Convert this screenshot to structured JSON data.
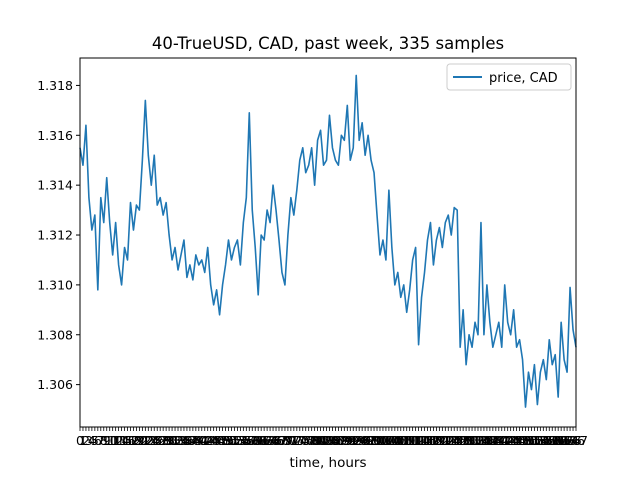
{
  "chart_data": {
    "type": "line",
    "title": "40-TrueUSD, CAD, past week, 335 samples",
    "xlabel": "time, hours",
    "ylabel": "",
    "xlim": [
      0,
      167
    ],
    "ylim": [
      1.3043,
      1.3191
    ],
    "yticks": [
      1.306,
      1.308,
      1.31,
      1.312,
      1.314,
      1.316,
      1.318
    ],
    "ytick_labels": [
      "1.306",
      "1.308",
      "1.310",
      "1.312",
      "1.314",
      "1.316",
      "1.318"
    ],
    "xticks_note": "hourly ticks 0–167 (labels overlap)",
    "legend_position": "top-right",
    "grid": false,
    "series": [
      {
        "name": "price, CAD",
        "color": "#1f77b4",
        "anchors": [
          [
            0,
            1.3155
          ],
          [
            1,
            1.3148
          ],
          [
            2,
            1.3164
          ],
          [
            3,
            1.3135
          ],
          [
            4,
            1.3122
          ],
          [
            5,
            1.3128
          ],
          [
            6,
            1.3098
          ],
          [
            7,
            1.3135
          ],
          [
            8,
            1.3125
          ],
          [
            9,
            1.3143
          ],
          [
            10,
            1.3125
          ],
          [
            11,
            1.3112
          ],
          [
            12,
            1.3125
          ],
          [
            13,
            1.3108
          ],
          [
            14,
            1.31
          ],
          [
            15,
            1.3115
          ],
          [
            16,
            1.311
          ],
          [
            17,
            1.3133
          ],
          [
            18,
            1.3122
          ],
          [
            19,
            1.3132
          ],
          [
            20,
            1.313
          ],
          [
            21,
            1.315
          ],
          [
            22,
            1.3174
          ],
          [
            23,
            1.3152
          ],
          [
            24,
            1.314
          ],
          [
            25,
            1.3152
          ],
          [
            26,
            1.3132
          ],
          [
            27,
            1.3135
          ],
          [
            28,
            1.3128
          ],
          [
            29,
            1.3133
          ],
          [
            30,
            1.312
          ],
          [
            31,
            1.311
          ],
          [
            32,
            1.3115
          ],
          [
            33,
            1.3106
          ],
          [
            34,
            1.3112
          ],
          [
            35,
            1.3118
          ],
          [
            36,
            1.3103
          ],
          [
            37,
            1.3108
          ],
          [
            38,
            1.3102
          ],
          [
            39,
            1.3112
          ],
          [
            40,
            1.3108
          ],
          [
            41,
            1.311
          ],
          [
            42,
            1.3105
          ],
          [
            43,
            1.3115
          ],
          [
            44,
            1.31
          ],
          [
            45,
            1.3092
          ],
          [
            46,
            1.3098
          ],
          [
            47,
            1.3088
          ],
          [
            48,
            1.31
          ],
          [
            49,
            1.3108
          ],
          [
            50,
            1.3118
          ],
          [
            51,
            1.311
          ],
          [
            52,
            1.3115
          ],
          [
            53,
            1.3118
          ],
          [
            54,
            1.3108
          ],
          [
            55,
            1.3125
          ],
          [
            56,
            1.3135
          ],
          [
            57,
            1.3169
          ],
          [
            58,
            1.313
          ],
          [
            59,
            1.3115
          ],
          [
            60,
            1.3096
          ],
          [
            61,
            1.312
          ],
          [
            62,
            1.3118
          ],
          [
            63,
            1.313
          ],
          [
            64,
            1.3125
          ],
          [
            65,
            1.314
          ],
          [
            66,
            1.313
          ],
          [
            67,
            1.3118
          ],
          [
            68,
            1.3105
          ],
          [
            69,
            1.31
          ],
          [
            70,
            1.312
          ],
          [
            71,
            1.3135
          ],
          [
            72,
            1.3128
          ],
          [
            73,
            1.3138
          ],
          [
            74,
            1.315
          ],
          [
            75,
            1.3155
          ],
          [
            76,
            1.3145
          ],
          [
            77,
            1.3148
          ],
          [
            78,
            1.3155
          ],
          [
            79,
            1.314
          ],
          [
            80,
            1.3158
          ],
          [
            81,
            1.3162
          ],
          [
            82,
            1.3148
          ],
          [
            83,
            1.315
          ],
          [
            84,
            1.3168
          ],
          [
            85,
            1.3155
          ],
          [
            86,
            1.315
          ],
          [
            87,
            1.3148
          ],
          [
            88,
            1.316
          ],
          [
            89,
            1.3158
          ],
          [
            90,
            1.3172
          ],
          [
            91,
            1.315
          ],
          [
            92,
            1.3155
          ],
          [
            93,
            1.3184
          ],
          [
            94,
            1.3158
          ],
          [
            95,
            1.3165
          ],
          [
            96,
            1.3152
          ],
          [
            97,
            1.316
          ],
          [
            98,
            1.315
          ],
          [
            99,
            1.3145
          ],
          [
            100,
            1.3128
          ],
          [
            101,
            1.3112
          ],
          [
            102,
            1.3118
          ],
          [
            103,
            1.311
          ],
          [
            104,
            1.3138
          ],
          [
            105,
            1.3115
          ],
          [
            106,
            1.31
          ],
          [
            107,
            1.3105
          ],
          [
            108,
            1.3095
          ],
          [
            109,
            1.31
          ],
          [
            110,
            1.3089
          ],
          [
            111,
            1.3098
          ],
          [
            112,
            1.311
          ],
          [
            113,
            1.3115
          ],
          [
            114,
            1.3076
          ],
          [
            115,
            1.3095
          ],
          [
            116,
            1.3105
          ],
          [
            117,
            1.3118
          ],
          [
            118,
            1.3125
          ],
          [
            119,
            1.3108
          ],
          [
            120,
            1.3118
          ],
          [
            121,
            1.3123
          ],
          [
            122,
            1.3115
          ],
          [
            123,
            1.3125
          ],
          [
            124,
            1.3128
          ],
          [
            125,
            1.312
          ],
          [
            126,
            1.3131
          ],
          [
            127,
            1.313
          ],
          [
            128,
            1.3075
          ],
          [
            129,
            1.309
          ],
          [
            130,
            1.3068
          ],
          [
            131,
            1.308
          ],
          [
            132,
            1.3075
          ],
          [
            133,
            1.3085
          ],
          [
            134,
            1.308
          ],
          [
            135,
            1.3125
          ],
          [
            136,
            1.308
          ],
          [
            137,
            1.31
          ],
          [
            138,
            1.3085
          ],
          [
            139,
            1.3075
          ],
          [
            140,
            1.308
          ],
          [
            141,
            1.3085
          ],
          [
            142,
            1.3075
          ],
          [
            143,
            1.31
          ],
          [
            144,
            1.3085
          ],
          [
            145,
            1.308
          ],
          [
            146,
            1.309
          ],
          [
            147,
            1.3075
          ],
          [
            148,
            1.3078
          ],
          [
            149,
            1.307
          ],
          [
            150,
            1.3051
          ],
          [
            151,
            1.3065
          ],
          [
            152,
            1.3058
          ],
          [
            153,
            1.3068
          ],
          [
            154,
            1.3052
          ],
          [
            155,
            1.3065
          ],
          [
            156,
            1.307
          ],
          [
            157,
            1.3062
          ],
          [
            158,
            1.3078
          ],
          [
            159,
            1.3068
          ],
          [
            160,
            1.3072
          ],
          [
            161,
            1.3055
          ],
          [
            162,
            1.3085
          ],
          [
            163,
            1.307
          ],
          [
            164,
            1.3065
          ],
          [
            165,
            1.3099
          ],
          [
            166,
            1.3082
          ],
          [
            167,
            1.3075
          ]
        ]
      }
    ]
  }
}
